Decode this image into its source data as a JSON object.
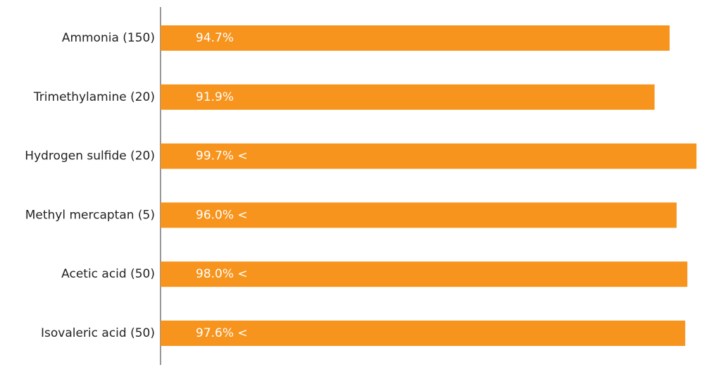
{
  "chart_data": {
    "type": "barh",
    "categories": [
      "Ammonia (150)",
      "Trimethylamine (20)",
      "Hydrogen sulfide (20)",
      "Methyl mercaptan (5)",
      "Acetic acid (50)",
      "Isovaleric acid (50)"
    ],
    "values": [
      94.7,
      91.9,
      99.7,
      96.0,
      98.0,
      97.6
    ],
    "value_labels": [
      "94.7%",
      "91.9%",
      "99.7% <",
      "96.0% <",
      "98.0% <",
      "97.6% <"
    ],
    "color": "#f7941d",
    "xlim": [
      0,
      100
    ]
  }
}
